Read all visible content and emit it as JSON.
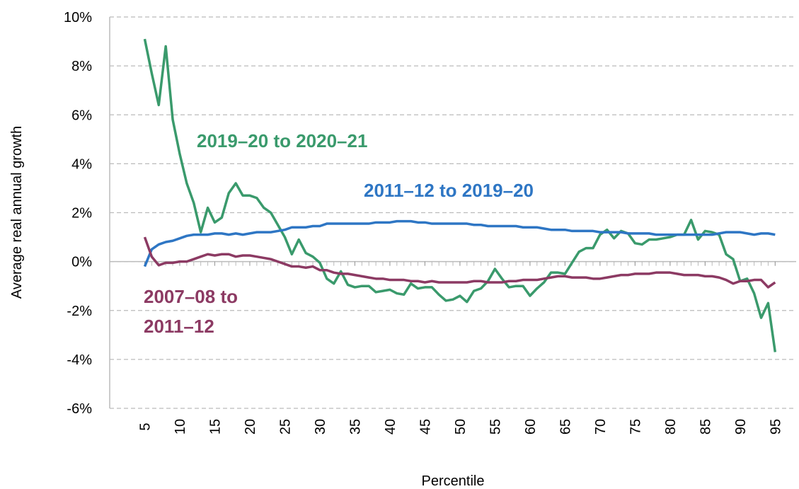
{
  "chart_data": {
    "type": "line",
    "x_label": "Percentile",
    "y_label": "Average real annual growth",
    "x": [
      5,
      6,
      7,
      8,
      9,
      10,
      11,
      12,
      13,
      14,
      15,
      16,
      17,
      18,
      19,
      20,
      21,
      22,
      23,
      24,
      25,
      26,
      27,
      28,
      29,
      30,
      31,
      32,
      33,
      34,
      35,
      36,
      37,
      38,
      39,
      40,
      41,
      42,
      43,
      44,
      45,
      46,
      47,
      48,
      49,
      50,
      51,
      52,
      53,
      54,
      55,
      56,
      57,
      58,
      59,
      60,
      61,
      62,
      63,
      64,
      65,
      66,
      67,
      68,
      69,
      70,
      71,
      72,
      73,
      74,
      75,
      76,
      77,
      78,
      79,
      80,
      81,
      82,
      83,
      84,
      85,
      86,
      87,
      88,
      89,
      90,
      91,
      92,
      93,
      94,
      95
    ],
    "series": [
      {
        "name": "2019–20 to 2020–21",
        "color": "#3a9a6c",
        "values": [
          9.1,
          7.7,
          6.4,
          8.8,
          5.8,
          4.4,
          3.2,
          2.4,
          1.2,
          2.2,
          1.6,
          1.8,
          2.8,
          3.2,
          2.7,
          2.7,
          2.6,
          2.2,
          2.0,
          1.5,
          1.0,
          0.3,
          0.9,
          0.35,
          0.2,
          -0.05,
          -0.7,
          -0.9,
          -0.4,
          -0.95,
          -1.05,
          -1.0,
          -1.0,
          -1.25,
          -1.2,
          -1.15,
          -1.3,
          -1.35,
          -0.9,
          -1.1,
          -1.05,
          -1.05,
          -1.35,
          -1.6,
          -1.55,
          -1.4,
          -1.65,
          -1.2,
          -1.1,
          -0.8,
          -0.3,
          -0.7,
          -1.05,
          -1.0,
          -1.0,
          -1.4,
          -1.1,
          -0.85,
          -0.45,
          -0.45,
          -0.5,
          -0.05,
          0.4,
          0.55,
          0.55,
          1.1,
          1.3,
          0.95,
          1.25,
          1.15,
          0.75,
          0.7,
          0.9,
          0.9,
          0.95,
          1.0,
          1.1,
          1.1,
          1.7,
          0.9,
          1.25,
          1.2,
          1.1,
          0.3,
          0.1,
          -0.8,
          -0.7,
          -1.3,
          -2.3,
          -1.7,
          -3.7
        ]
      },
      {
        "name": "2011–12 to 2019–20",
        "color": "#2e76c4",
        "values": [
          -0.2,
          0.5,
          0.7,
          0.8,
          0.85,
          0.95,
          1.05,
          1.1,
          1.1,
          1.1,
          1.15,
          1.15,
          1.1,
          1.15,
          1.1,
          1.15,
          1.2,
          1.2,
          1.2,
          1.25,
          1.3,
          1.4,
          1.4,
          1.4,
          1.45,
          1.45,
          1.55,
          1.55,
          1.55,
          1.55,
          1.55,
          1.55,
          1.55,
          1.6,
          1.6,
          1.6,
          1.65,
          1.65,
          1.65,
          1.6,
          1.6,
          1.55,
          1.55,
          1.55,
          1.55,
          1.55,
          1.55,
          1.5,
          1.5,
          1.45,
          1.45,
          1.45,
          1.45,
          1.45,
          1.4,
          1.4,
          1.4,
          1.35,
          1.3,
          1.3,
          1.3,
          1.25,
          1.25,
          1.25,
          1.25,
          1.2,
          1.2,
          1.2,
          1.2,
          1.15,
          1.15,
          1.15,
          1.15,
          1.1,
          1.1,
          1.1,
          1.1,
          1.1,
          1.1,
          1.1,
          1.1,
          1.1,
          1.15,
          1.2,
          1.2,
          1.2,
          1.15,
          1.1,
          1.15,
          1.15,
          1.1
        ]
      },
      {
        "name": "2007–08 to 2011–12",
        "color": "#8c3a63",
        "values": [
          1.0,
          0.2,
          -0.15,
          -0.05,
          -0.05,
          0.0,
          0.0,
          0.1,
          0.2,
          0.3,
          0.25,
          0.3,
          0.3,
          0.2,
          0.25,
          0.25,
          0.2,
          0.15,
          0.1,
          0.0,
          -0.1,
          -0.2,
          -0.2,
          -0.25,
          -0.2,
          -0.35,
          -0.35,
          -0.45,
          -0.5,
          -0.5,
          -0.55,
          -0.6,
          -0.65,
          -0.7,
          -0.7,
          -0.75,
          -0.75,
          -0.75,
          -0.8,
          -0.8,
          -0.85,
          -0.8,
          -0.85,
          -0.85,
          -0.85,
          -0.85,
          -0.85,
          -0.8,
          -0.8,
          -0.85,
          -0.85,
          -0.85,
          -0.8,
          -0.8,
          -0.75,
          -0.75,
          -0.75,
          -0.7,
          -0.65,
          -0.6,
          -0.6,
          -0.65,
          -0.65,
          -0.65,
          -0.7,
          -0.7,
          -0.65,
          -0.6,
          -0.55,
          -0.55,
          -0.5,
          -0.5,
          -0.5,
          -0.45,
          -0.45,
          -0.45,
          -0.5,
          -0.55,
          -0.55,
          -0.55,
          -0.6,
          -0.6,
          -0.65,
          -0.75,
          -0.9,
          -0.8,
          -0.8,
          -0.75,
          -0.75,
          -1.05,
          -0.85
        ]
      }
    ],
    "xlim": [
      0,
      98
    ],
    "xticks": [
      5,
      10,
      15,
      20,
      25,
      30,
      35,
      40,
      45,
      50,
      55,
      60,
      65,
      70,
      75,
      80,
      85,
      90,
      95
    ],
    "ylim": [
      -6,
      10
    ],
    "yticks": [
      {
        "value": -6,
        "label": "-6%"
      },
      {
        "value": -4,
        "label": "-4%"
      },
      {
        "value": -2,
        "label": "-2%"
      },
      {
        "value": 0,
        "label": "0%"
      },
      {
        "value": 2,
        "label": "2%"
      },
      {
        "value": 4,
        "label": "4%"
      },
      {
        "value": 6,
        "label": "6%"
      },
      {
        "value": 8,
        "label": "8%"
      },
      {
        "value": 10,
        "label": "10%"
      }
    ],
    "grid": true
  }
}
